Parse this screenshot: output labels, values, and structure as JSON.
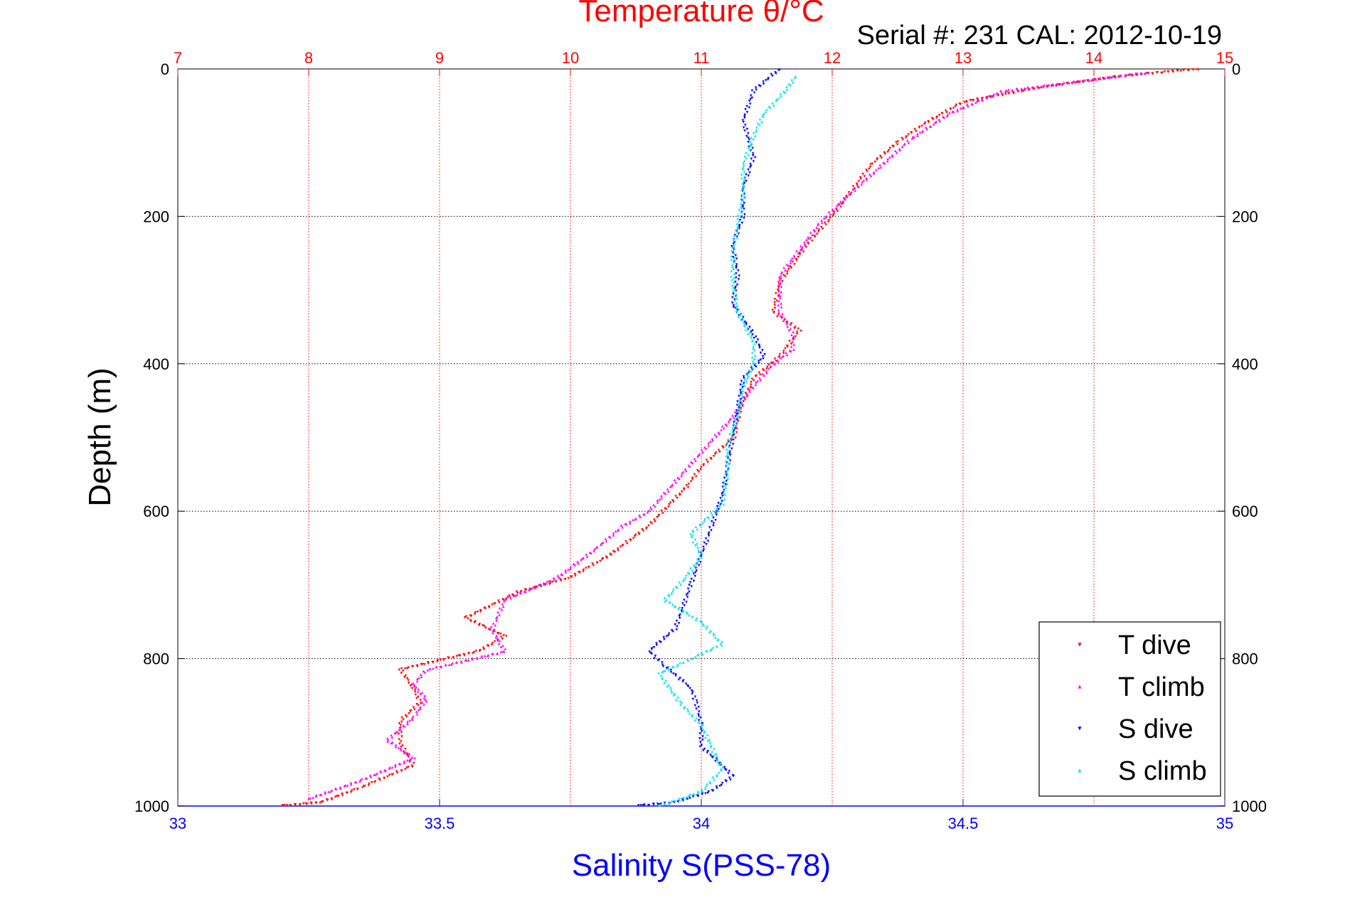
{
  "chart_data": {
    "type": "scatter",
    "title": "Temperature θ/°C",
    "subtitle": "Serial #: 231  CAL: 2012-10-19",
    "xlabel": "Salinity S(PSS-78)",
    "ylabel": "Depth (m)",
    "x_top": {
      "label": "Temperature θ/°C",
      "range": [
        7,
        15
      ],
      "ticks": [
        "7",
        "8",
        "9",
        "10",
        "11",
        "12",
        "13",
        "14",
        "15"
      ]
    },
    "x_bottom": {
      "label": "Salinity S(PSS-78)",
      "range": [
        33,
        35
      ],
      "ticks": [
        "33",
        "33.5",
        "34",
        "34.5",
        "35"
      ]
    },
    "y": {
      "label": "Depth (m)",
      "range": [
        0,
        1000
      ],
      "reversed": true,
      "ticks": [
        "0",
        "200",
        "400",
        "600",
        "800",
        "1000"
      ]
    },
    "grid": true,
    "legend_position": "bottom-right",
    "colors": {
      "t_dive": "#ff0000",
      "t_climb": "#ff00ff",
      "s_dive": "#0000ff",
      "s_climb": "#00e5ee",
      "top_axis": "#ff0000",
      "bottom_axis": "#0000ff"
    },
    "series": [
      {
        "name": "T dive",
        "axis": "temperature",
        "marker": "triangle-down",
        "points": [
          [
            14.8,
            0
          ],
          [
            14.2,
            10
          ],
          [
            13.6,
            25
          ],
          [
            13.0,
            45
          ],
          [
            12.7,
            75
          ],
          [
            12.5,
            100
          ],
          [
            12.3,
            130
          ],
          [
            12.15,
            165
          ],
          [
            12.0,
            200
          ],
          [
            11.8,
            240
          ],
          [
            11.6,
            290
          ],
          [
            11.55,
            330
          ],
          [
            11.75,
            355
          ],
          [
            11.6,
            390
          ],
          [
            11.4,
            420
          ],
          [
            11.3,
            460
          ],
          [
            11.25,
            500
          ],
          [
            11.0,
            540
          ],
          [
            10.9,
            565
          ],
          [
            10.6,
            620
          ],
          [
            10.3,
            660
          ],
          [
            10.0,
            690
          ],
          [
            9.6,
            710
          ],
          [
            9.2,
            745
          ],
          [
            9.5,
            770
          ],
          [
            9.3,
            790
          ],
          [
            8.7,
            815
          ],
          [
            8.8,
            840
          ],
          [
            8.85,
            860
          ],
          [
            8.7,
            885
          ],
          [
            8.7,
            915
          ],
          [
            8.8,
            945
          ],
          [
            8.6,
            960
          ],
          [
            8.4,
            975
          ],
          [
            8.1,
            995
          ],
          [
            7.8,
            1000
          ]
        ]
      },
      {
        "name": "T climb",
        "axis": "temperature",
        "marker": "triangle-up",
        "points": [
          [
            14.4,
            5
          ],
          [
            13.3,
            30
          ],
          [
            12.9,
            60
          ],
          [
            12.6,
            95
          ],
          [
            12.35,
            135
          ],
          [
            12.1,
            175
          ],
          [
            11.9,
            210
          ],
          [
            11.75,
            245
          ],
          [
            11.6,
            280
          ],
          [
            11.6,
            330
          ],
          [
            11.7,
            360
          ],
          [
            11.7,
            380
          ],
          [
            11.55,
            400
          ],
          [
            11.35,
            440
          ],
          [
            11.25,
            470
          ],
          [
            11.15,
            490
          ],
          [
            10.9,
            540
          ],
          [
            10.6,
            600
          ],
          [
            10.4,
            620
          ],
          [
            10.2,
            650
          ],
          [
            9.9,
            690
          ],
          [
            9.5,
            720
          ],
          [
            9.4,
            760
          ],
          [
            9.5,
            790
          ],
          [
            8.9,
            815
          ],
          [
            8.8,
            835
          ],
          [
            8.9,
            855
          ],
          [
            8.8,
            880
          ],
          [
            8.6,
            910
          ],
          [
            8.8,
            935
          ],
          [
            8.4,
            965
          ],
          [
            8.0,
            990
          ]
        ]
      },
      {
        "name": "S dive",
        "axis": "salinity",
        "marker": "triangle-down",
        "points": [
          [
            34.15,
            0
          ],
          [
            34.1,
            30
          ],
          [
            34.08,
            70
          ],
          [
            34.1,
            120
          ],
          [
            34.08,
            160
          ],
          [
            34.08,
            200
          ],
          [
            34.06,
            240
          ],
          [
            34.07,
            280
          ],
          [
            34.06,
            320
          ],
          [
            34.1,
            360
          ],
          [
            34.12,
            390
          ],
          [
            34.08,
            420
          ],
          [
            34.07,
            460
          ],
          [
            34.06,
            500
          ],
          [
            34.05,
            540
          ],
          [
            34.04,
            580
          ],
          [
            34.02,
            620
          ],
          [
            34.0,
            660
          ],
          [
            33.98,
            700
          ],
          [
            33.96,
            740
          ],
          [
            33.95,
            760
          ],
          [
            33.9,
            790
          ],
          [
            33.93,
            810
          ],
          [
            33.98,
            840
          ],
          [
            33.99,
            860
          ],
          [
            34.0,
            890
          ],
          [
            34.0,
            920
          ],
          [
            34.04,
            945
          ],
          [
            34.06,
            960
          ],
          [
            34.02,
            980
          ],
          [
            33.95,
            995
          ],
          [
            33.88,
            1000
          ]
        ]
      },
      {
        "name": "S climb",
        "axis": "salinity",
        "marker": "triangle-up",
        "points": [
          [
            34.18,
            10
          ],
          [
            34.16,
            30
          ],
          [
            34.12,
            60
          ],
          [
            34.1,
            90
          ],
          [
            34.08,
            130
          ],
          [
            34.08,
            170
          ],
          [
            34.07,
            210
          ],
          [
            34.06,
            250
          ],
          [
            34.06,
            290
          ],
          [
            34.07,
            330
          ],
          [
            34.1,
            370
          ],
          [
            34.1,
            400
          ],
          [
            34.08,
            430
          ],
          [
            34.07,
            470
          ],
          [
            34.05,
            510
          ],
          [
            34.05,
            550
          ],
          [
            34.04,
            590
          ],
          [
            33.98,
            630
          ],
          [
            34.0,
            660
          ],
          [
            33.97,
            690
          ],
          [
            33.93,
            720
          ],
          [
            34.0,
            750
          ],
          [
            34.04,
            780
          ],
          [
            33.92,
            820
          ],
          [
            33.96,
            860
          ],
          [
            34.0,
            890
          ],
          [
            34.02,
            920
          ],
          [
            34.04,
            950
          ],
          [
            34.0,
            980
          ],
          [
            33.92,
            1000
          ]
        ]
      }
    ]
  }
}
